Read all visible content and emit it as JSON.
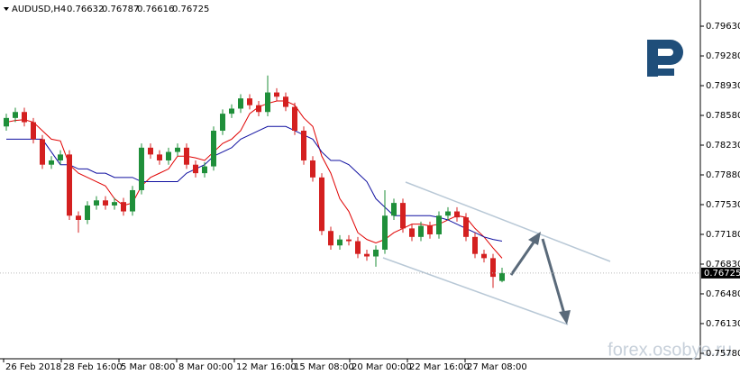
{
  "chart_data": {
    "type": "candlestick",
    "title": "AUDUSD,H4",
    "watermark": "forex.osobye.ru",
    "bull_color": "#1f8f3a",
    "bear_color": "#d42020",
    "open": [
      0.7845,
      0.7855,
      0.7862,
      0.785,
      0.783,
      0.78,
      0.7805,
      0.7812,
      0.774,
      0.7735,
      0.7752,
      0.7758,
      0.7752,
      0.7756,
      0.7745,
      0.777,
      0.782,
      0.7812,
      0.7805,
      0.7815,
      0.782,
      0.78,
      0.779,
      0.7798,
      0.784,
      0.786,
      0.7866,
      0.7878,
      0.787,
      0.7862,
      0.7885,
      0.788,
      0.7868,
      0.784,
      0.7805,
      0.7785,
      0.7722,
      0.7705,
      0.7712,
      0.771,
      0.7695,
      0.7692,
      0.77,
      0.774,
      0.7755,
      0.7725,
      0.7715,
      0.7728,
      0.7718,
      0.774,
      0.7745,
      0.7738,
      0.7715,
      0.7695,
      0.769,
      0.76632
    ],
    "high": [
      0.786,
      0.7867,
      0.7867,
      0.7855,
      0.7835,
      0.781,
      0.7817,
      0.7817,
      0.7745,
      0.7757,
      0.7763,
      0.7763,
      0.7761,
      0.7761,
      0.7775,
      0.7825,
      0.7825,
      0.7817,
      0.782,
      0.7825,
      0.7825,
      0.7805,
      0.7803,
      0.7845,
      0.7865,
      0.7871,
      0.7883,
      0.7883,
      0.7875,
      0.7905,
      0.789,
      0.7885,
      0.7873,
      0.7845,
      0.781,
      0.779,
      0.7727,
      0.7717,
      0.7717,
      0.7715,
      0.77,
      0.7705,
      0.777,
      0.776,
      0.776,
      0.773,
      0.7733,
      0.7733,
      0.7745,
      0.775,
      0.775,
      0.7743,
      0.772,
      0.77,
      0.7695,
      0.76787
    ],
    "low": [
      0.784,
      0.785,
      0.7845,
      0.7825,
      0.7795,
      0.7795,
      0.78,
      0.7735,
      0.772,
      0.773,
      0.7747,
      0.7747,
      0.7747,
      0.774,
      0.774,
      0.7765,
      0.7807,
      0.78,
      0.78,
      0.781,
      0.7795,
      0.7785,
      0.7785,
      0.7793,
      0.7835,
      0.7855,
      0.7861,
      0.7865,
      0.7857,
      0.7857,
      0.7875,
      0.7863,
      0.7835,
      0.78,
      0.778,
      0.7717,
      0.77,
      0.77,
      0.7705,
      0.769,
      0.7687,
      0.768,
      0.7695,
      0.7735,
      0.772,
      0.771,
      0.771,
      0.7713,
      0.7713,
      0.7735,
      0.7733,
      0.771,
      0.769,
      0.7685,
      0.7655,
      0.76616
    ],
    "close": [
      0.7855,
      0.7862,
      0.785,
      0.783,
      0.78,
      0.7805,
      0.7812,
      0.774,
      0.7735,
      0.7752,
      0.7758,
      0.7752,
      0.7756,
      0.7745,
      0.777,
      0.782,
      0.7812,
      0.7805,
      0.7815,
      0.782,
      0.78,
      0.779,
      0.7798,
      0.784,
      0.786,
      0.7866,
      0.7878,
      0.787,
      0.7862,
      0.7885,
      0.788,
      0.7868,
      0.784,
      0.7805,
      0.7785,
      0.7722,
      0.7705,
      0.7712,
      0.771,
      0.7695,
      0.7692,
      0.77,
      0.774,
      0.7755,
      0.7725,
      0.7715,
      0.7728,
      0.7718,
      0.774,
      0.7745,
      0.7738,
      0.7715,
      0.7695,
      0.769,
      0.7668,
      0.76725
    ],
    "series": [
      {
        "color": "#e00000",
        "values": [
          0.785,
          0.7852,
          0.7853,
          0.785,
          0.784,
          0.783,
          0.7828,
          0.78,
          0.779,
          0.7785,
          0.778,
          0.7775,
          0.776,
          0.7752,
          0.7755,
          0.7775,
          0.7785,
          0.779,
          0.7795,
          0.781,
          0.781,
          0.7808,
          0.7805,
          0.7815,
          0.7825,
          0.783,
          0.784,
          0.786,
          0.7868,
          0.7872,
          0.7875,
          0.7875,
          0.787,
          0.7855,
          0.7845,
          0.781,
          0.779,
          0.776,
          0.7745,
          0.772,
          0.7712,
          0.7708,
          0.7712,
          0.772,
          0.7725,
          0.773,
          0.773,
          0.7728,
          0.773,
          0.7735,
          0.774,
          0.7738,
          0.7725,
          0.7715,
          0.7702,
          0.769
        ]
      },
      {
        "color": "#1010a0",
        "values": [
          0.783,
          0.783,
          0.783,
          0.783,
          0.783,
          0.7815,
          0.78,
          0.78,
          0.7795,
          0.7795,
          0.779,
          0.779,
          0.7785,
          0.7785,
          0.7785,
          0.778,
          0.778,
          0.778,
          0.778,
          0.778,
          0.779,
          0.7795,
          0.78,
          0.781,
          0.7815,
          0.782,
          0.783,
          0.7835,
          0.784,
          0.7845,
          0.7845,
          0.7845,
          0.784,
          0.7835,
          0.783,
          0.7815,
          0.7805,
          0.7805,
          0.78,
          0.779,
          0.778,
          0.776,
          0.775,
          0.774,
          0.774,
          0.774,
          0.774,
          0.774,
          0.7738,
          0.7735,
          0.773,
          0.7725,
          0.772,
          0.7715,
          0.7712,
          0.771
        ]
      }
    ],
    "x_labels": [
      "26 Feb 2018",
      "28 Feb 16:00",
      "5 Mar 08:00",
      "8 Mar 00:00",
      "12 Mar 16:00",
      "15 Mar 08:00",
      "20 Mar 00:00",
      "22 Mar 16:00",
      "27 Mar 08:00"
    ],
    "ylim": [
      0.75716,
      0.79938
    ],
    "yticks": [
      {
        "value": 0.7963,
        "label": "0.79630"
      },
      {
        "value": 0.7928,
        "label": "0.79280"
      },
      {
        "value": 0.7893,
        "label": "0.78930"
      },
      {
        "value": 0.7858,
        "label": "0.78580"
      },
      {
        "value": 0.7823,
        "label": "0.78230"
      },
      {
        "value": 0.7788,
        "label": "0.77880"
      },
      {
        "value": 0.7753,
        "label": "0.77530"
      },
      {
        "value": 0.7718,
        "label": "0.77180"
      },
      {
        "value": 0.7683,
        "label": "0.76830"
      },
      {
        "value": 0.7648,
        "label": "0.76480"
      },
      {
        "value": 0.7613,
        "label": "0.76130"
      },
      {
        "value": 0.7578,
        "label": "0.75780"
      }
    ]
  }
}
